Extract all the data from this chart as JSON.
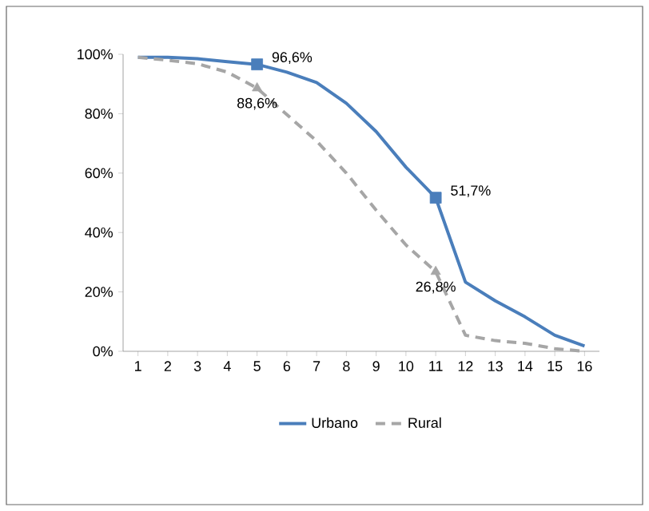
{
  "chart_data": {
    "type": "line",
    "categories": [
      "1",
      "2",
      "3",
      "4",
      "5",
      "6",
      "7",
      "8",
      "9",
      "10",
      "11",
      "12",
      "13",
      "14",
      "15",
      "16"
    ],
    "series": [
      {
        "name": "Urbano",
        "color": "#4a7ebb",
        "line_style": "solid",
        "values": [
          99,
          99,
          98.5,
          97.5,
          96.6,
          94,
          90.5,
          83.5,
          74,
          62,
          51.7,
          23.3,
          17,
          11.6,
          5.4,
          1.8
        ]
      },
      {
        "name": "Rural",
        "color": "#a6a6a6",
        "line_style": "dashed",
        "values": [
          99,
          98,
          96.8,
          94,
          88.6,
          79.7,
          70.8,
          60,
          47.5,
          35.8,
          26.8,
          5.4,
          3.6,
          2.7,
          0.9,
          0
        ]
      },
      {
        "type": "scatter",
        "color": "#4a7ebb",
        "marker": "square",
        "x": [
          "5",
          "11"
        ],
        "values": [
          96.6,
          51.7
        ],
        "value_labels": [
          "96,6%",
          "51,7%"
        ]
      },
      {
        "type": "scatter",
        "color": "#a6a6a6",
        "marker": "triangle",
        "x": [
          "5",
          "11"
        ],
        "values": [
          88.6,
          26.8
        ],
        "value_labels": [
          "88,6%",
          "26,8%"
        ]
      }
    ],
    "ylim": [
      0,
      100
    ],
    "yticks": [
      {
        "value": 0,
        "label": "0%"
      },
      {
        "value": 20,
        "label": "20%"
      },
      {
        "value": 40,
        "label": "40%"
      },
      {
        "value": 60,
        "label": "60%"
      },
      {
        "value": 80,
        "label": "80%"
      },
      {
        "value": 100,
        "label": "100%"
      }
    ],
    "legend": "bottom"
  }
}
